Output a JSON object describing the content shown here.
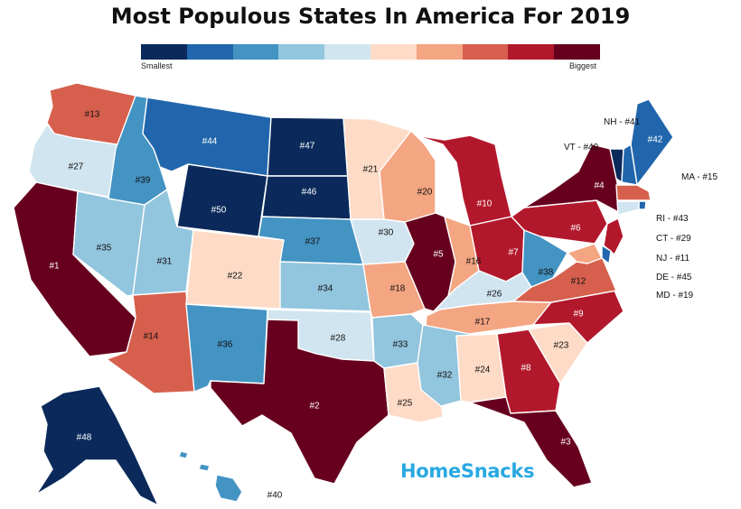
{
  "title": "Most Populous States In America For 2019",
  "legend": {
    "low_label": "Smallest",
    "high_label": "Biggest",
    "colors": [
      "#0b2a5b",
      "#2166ac",
      "#4393c3",
      "#92c5de",
      "#d1e5f0",
      "#fddbc7",
      "#f4a582",
      "#d6604d",
      "#b2182b",
      "#67001f"
    ]
  },
  "brand": "HomeSnacks",
  "states": [
    {
      "code": "WA",
      "rank": "#13",
      "color": "#d6604d"
    },
    {
      "code": "OR",
      "rank": "#27",
      "color": "#d1e5f0"
    },
    {
      "code": "CA",
      "rank": "#1",
      "color": "#67001f"
    },
    {
      "code": "NV",
      "rank": "#35",
      "color": "#92c5de"
    },
    {
      "code": "ID",
      "rank": "#39",
      "color": "#4393c3"
    },
    {
      "code": "MT",
      "rank": "#44",
      "color": "#2166ac"
    },
    {
      "code": "WY",
      "rank": "#50",
      "color": "#0b2a5b"
    },
    {
      "code": "UT",
      "rank": "#31",
      "color": "#92c5de"
    },
    {
      "code": "AZ",
      "rank": "#14",
      "color": "#d6604d"
    },
    {
      "code": "CO",
      "rank": "#22",
      "color": "#fddbc7"
    },
    {
      "code": "NM",
      "rank": "#36",
      "color": "#4393c3"
    },
    {
      "code": "ND",
      "rank": "#47",
      "color": "#0b2a5b"
    },
    {
      "code": "SD",
      "rank": "#46",
      "color": "#0b2a5b"
    },
    {
      "code": "NE",
      "rank": "#37",
      "color": "#4393c3"
    },
    {
      "code": "KS",
      "rank": "#34",
      "color": "#92c5de"
    },
    {
      "code": "OK",
      "rank": "#28",
      "color": "#d1e5f0"
    },
    {
      "code": "TX",
      "rank": "#2",
      "color": "#67001f"
    },
    {
      "code": "MN",
      "rank": "#21",
      "color": "#fddbc7"
    },
    {
      "code": "IA",
      "rank": "#30",
      "color": "#d1e5f0"
    },
    {
      "code": "MO",
      "rank": "#18",
      "color": "#f4a582"
    },
    {
      "code": "AR",
      "rank": "#33",
      "color": "#92c5de"
    },
    {
      "code": "LA",
      "rank": "#25",
      "color": "#fddbc7"
    },
    {
      "code": "WI",
      "rank": "#20",
      "color": "#f4a582"
    },
    {
      "code": "IL",
      "rank": "#5",
      "color": "#67001f"
    },
    {
      "code": "MI",
      "rank": "#10",
      "color": "#b2182b"
    },
    {
      "code": "IN",
      "rank": "#16",
      "color": "#f4a582"
    },
    {
      "code": "OH",
      "rank": "#7",
      "color": "#b2182b"
    },
    {
      "code": "KY",
      "rank": "#26",
      "color": "#d1e5f0"
    },
    {
      "code": "TN",
      "rank": "#17",
      "color": "#f4a582"
    },
    {
      "code": "MS",
      "rank": "#32",
      "color": "#92c5de"
    },
    {
      "code": "AL",
      "rank": "#24",
      "color": "#fddbc7"
    },
    {
      "code": "GA",
      "rank": "#8",
      "color": "#b2182b"
    },
    {
      "code": "FL",
      "rank": "#3",
      "color": "#67001f"
    },
    {
      "code": "SC",
      "rank": "#23",
      "color": "#fddbc7"
    },
    {
      "code": "NC",
      "rank": "#9",
      "color": "#b2182b"
    },
    {
      "code": "VA",
      "rank": "#12",
      "color": "#d6604d"
    },
    {
      "code": "WV",
      "rank": "#38",
      "color": "#4393c3"
    },
    {
      "code": "PA",
      "rank": "#6",
      "color": "#b2182b"
    },
    {
      "code": "NY",
      "rank": "#4",
      "color": "#67001f"
    },
    {
      "code": "ME",
      "rank": "#42",
      "color": "#2166ac"
    },
    {
      "code": "AK",
      "rank": "#48",
      "color": "#0b2a5b"
    },
    {
      "code": "HI",
      "rank": "#40",
      "color": "#4393c3"
    },
    {
      "code": "VT",
      "rank": "",
      "color": "#0b2a5b"
    },
    {
      "code": "NH",
      "rank": "",
      "color": "#2166ac"
    },
    {
      "code": "MA",
      "rank": "",
      "color": "#d6604d"
    },
    {
      "code": "RI",
      "rank": "",
      "color": "#2166ac"
    },
    {
      "code": "CT",
      "rank": "",
      "color": "#d1e5f0"
    },
    {
      "code": "NJ",
      "rank": "",
      "color": "#b2182b"
    },
    {
      "code": "DE",
      "rank": "",
      "color": "#2166ac"
    },
    {
      "code": "MD",
      "rank": "",
      "color": "#f4a582"
    }
  ],
  "callouts": {
    "NH": "NH - #41",
    "VT": "VT - #49",
    "MA": "MA - #15",
    "RI": "RI - #43",
    "CT": "CT - #29",
    "NJ": "NJ - #11",
    "DE": "DE - #45",
    "MD": "MD - #19"
  }
}
